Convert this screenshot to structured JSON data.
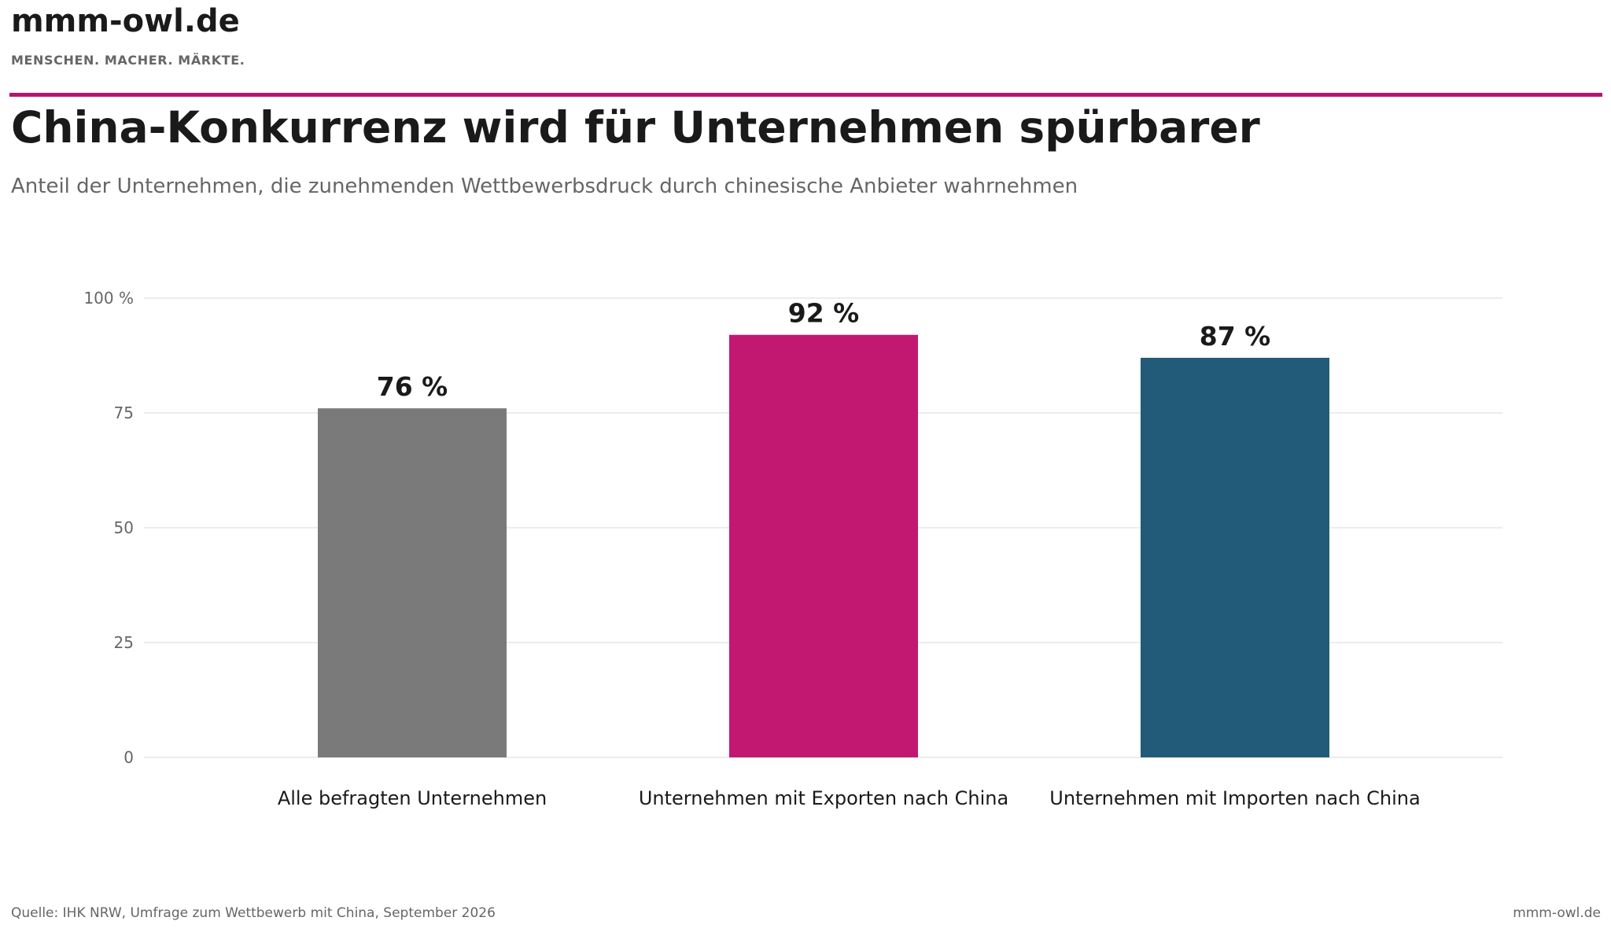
{
  "header": {
    "brand": "mmm-owl.de",
    "tagline": "MENSCHEN. MACHER. MÄRKTE."
  },
  "colors": {
    "accent": "#b5176e",
    "gridline": "#e6e6e6",
    "axis_text": "#666666"
  },
  "chart_data": {
    "type": "bar",
    "title": "China-Konkurrenz wird für Unternehmen spürbarer",
    "subtitle": "Anteil der Unternehmen, die zunehmenden Wettbewerbsdruck durch chinesische Anbieter wahrnehmen",
    "categories": [
      "Alle befragten Unternehmen",
      "Unternehmen mit Exporten nach China",
      "Unternehmen mit Importen nach China"
    ],
    "values": [
      76,
      92,
      87
    ],
    "value_labels": [
      "76 %",
      "92 %",
      "87 %"
    ],
    "bar_colors": [
      "#7a7a7a",
      "#c21872",
      "#225a79"
    ],
    "ylim": [
      0,
      100
    ],
    "y_ticks": [
      0,
      25,
      50,
      75,
      100
    ],
    "y_tick_labels": [
      "0",
      "25",
      "50",
      "75",
      "100 %"
    ],
    "grid": true,
    "xlabel": "",
    "ylabel": ""
  },
  "footer": {
    "source": "Quelle: IHK NRW, Umfrage zum Wettbewerb mit China, September 2026",
    "credit": "mmm-owl.de"
  }
}
